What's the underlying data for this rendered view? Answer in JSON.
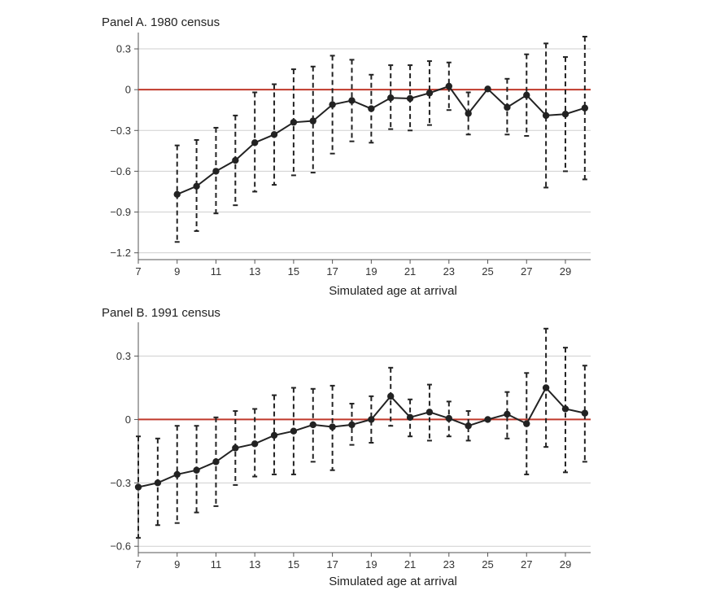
{
  "chart_data": [
    {
      "type": "line",
      "title": "Panel A. 1980 census",
      "xlabel": "Simulated age at arrival",
      "ylabel": "",
      "x_ticks": [
        7,
        9,
        11,
        13,
        15,
        17,
        19,
        21,
        23,
        25,
        27,
        29
      ],
      "y_ticks": [
        0.3,
        0,
        -0.3,
        -0.6,
        -0.9,
        -1.2
      ],
      "y_tick_labels": [
        "0.3",
        "0",
        "−0.3",
        "−0.6",
        "−0.9",
        "−1.2"
      ],
      "xlim": [
        7,
        30.3
      ],
      "ylim": [
        -1.25,
        0.42
      ],
      "grid": true,
      "reference_line": {
        "y": 0,
        "color": "#c0392b"
      },
      "series": [
        {
          "color": "#222222",
          "error_bars": "dashed",
          "x": [
            9,
            10,
            11,
            12,
            13,
            14,
            15,
            16,
            17,
            18,
            19,
            20,
            21,
            22,
            23,
            24,
            25,
            26,
            27,
            28,
            29,
            30
          ],
          "y": [
            -0.77,
            -0.71,
            -0.6,
            -0.52,
            -0.39,
            -0.33,
            -0.24,
            -0.23,
            -0.11,
            -0.08,
            -0.14,
            -0.06,
            -0.065,
            -0.025,
            0.025,
            -0.175,
            0.005,
            -0.13,
            -0.04,
            -0.19,
            -0.18,
            -0.135
          ],
          "lower": [
            -1.12,
            -1.04,
            -0.91,
            -0.85,
            -0.75,
            -0.7,
            -0.63,
            -0.61,
            -0.47,
            -0.38,
            -0.39,
            -0.29,
            -0.3,
            -0.26,
            -0.15,
            -0.33,
            null,
            -0.33,
            -0.34,
            -0.72,
            -0.6,
            -0.66
          ],
          "upper": [
            -0.41,
            -0.37,
            -0.28,
            -0.19,
            -0.02,
            0.04,
            0.15,
            0.17,
            0.25,
            0.22,
            0.11,
            0.18,
            0.18,
            0.21,
            0.2,
            -0.02,
            null,
            0.08,
            0.26,
            0.34,
            0.24,
            0.39
          ]
        }
      ]
    },
    {
      "type": "line",
      "title": "Panel B. 1991 census",
      "xlabel": "Simulated age at arrival",
      "ylabel": "",
      "x_ticks": [
        7,
        9,
        11,
        13,
        15,
        17,
        19,
        21,
        23,
        25,
        27,
        29
      ],
      "y_ticks": [
        0.3,
        0,
        -0.3,
        -0.6
      ],
      "y_tick_labels": [
        "0.3",
        "0",
        "−0.3",
        "−0.6"
      ],
      "xlim": [
        7,
        30.3
      ],
      "ylim": [
        -0.63,
        0.46
      ],
      "grid": true,
      "reference_line": {
        "y": 0,
        "color": "#c0392b"
      },
      "series": [
        {
          "color": "#222222",
          "error_bars": "dashed",
          "x": [
            7,
            8,
            9,
            10,
            11,
            12,
            13,
            14,
            15,
            16,
            17,
            18,
            19,
            20,
            21,
            22,
            23,
            24,
            25,
            26,
            27,
            28,
            29,
            30
          ],
          "y": [
            -0.32,
            -0.3,
            -0.26,
            -0.24,
            -0.2,
            -0.135,
            -0.115,
            -0.075,
            -0.055,
            -0.025,
            -0.035,
            -0.025,
            0.0,
            0.11,
            0.01,
            0.035,
            0.005,
            -0.03,
            0.0,
            0.025,
            -0.02,
            0.15,
            0.05,
            0.03
          ],
          "lower": [
            -0.56,
            -0.5,
            -0.49,
            -0.44,
            -0.41,
            -0.31,
            -0.27,
            -0.26,
            -0.26,
            -0.2,
            -0.24,
            -0.12,
            -0.11,
            -0.03,
            -0.08,
            -0.1,
            -0.08,
            -0.1,
            null,
            -0.09,
            -0.26,
            -0.13,
            -0.25,
            -0.2
          ],
          "upper": [
            -0.08,
            -0.09,
            -0.03,
            -0.03,
            0.01,
            0.04,
            0.05,
            0.115,
            0.15,
            0.145,
            0.16,
            0.075,
            0.11,
            0.245,
            0.095,
            0.165,
            0.085,
            0.04,
            null,
            0.13,
            0.22,
            0.43,
            0.34,
            0.255
          ]
        }
      ]
    }
  ]
}
